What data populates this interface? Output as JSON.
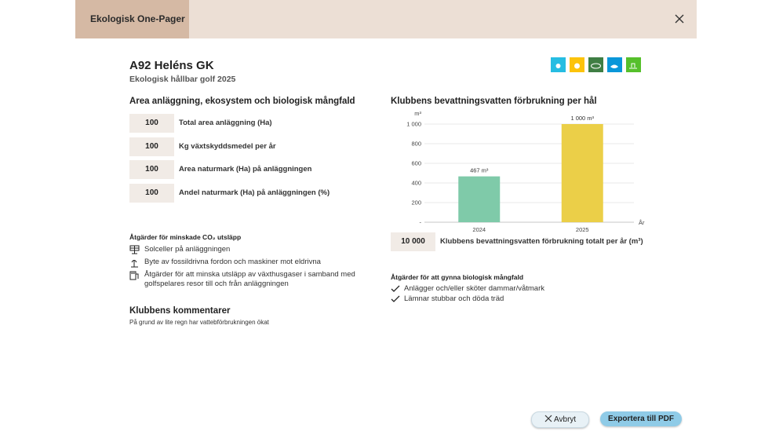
{
  "header": {
    "tab": "Ekologisk One-Pager"
  },
  "club": {
    "title": "A92 Heléns GK",
    "subtitle": "Ekologisk hållbar golf 2025"
  },
  "area": {
    "heading": "Area anläggning, ekosystem och biologisk mångfald",
    "rows": [
      {
        "value": "100",
        "label": "Total area anläggning (Ha)"
      },
      {
        "value": "100",
        "label": "Kg växtskyddsmedel per år"
      },
      {
        "value": "100",
        "label": "Area naturmark (Ha) på anläggningen"
      },
      {
        "value": "100",
        "label": "Andel naturmark (Ha) på anläggningen (%)"
      }
    ]
  },
  "co2": {
    "heading": "Åtgärder för minskade CO₂ utsläpp",
    "items": [
      "Solceller på anläggningen",
      "Byte av fossildrivna fordon och maskiner mot eldrivna",
      "Åtgärder för att minska utsläpp av växthusgaser i samband med golfspelares resor till och från anläggningen"
    ]
  },
  "comments": {
    "heading": "Klubbens kommentarer",
    "text": "På grund av lite regn har vattebförbrukningen ökat"
  },
  "chart_data": {
    "type": "bar",
    "title": "Klubbens bevattningsvatten förbrukning per hål",
    "y_unit": "m³",
    "x_label": "År",
    "categories": [
      "2024",
      "2025"
    ],
    "values": [
      467,
      1000
    ],
    "value_labels": [
      "467 m³",
      "1 000 m³"
    ],
    "colors": [
      "#7fcaa9",
      "#ebcf48"
    ],
    "ylim": [
      0,
      1000
    ],
    "yticks": [
      {
        "value": 0,
        "label": "-"
      },
      200,
      400,
      600,
      800,
      {
        "value": 1000,
        "label": "1 000"
      }
    ],
    "grid": true
  },
  "total": {
    "value": "10 000",
    "label": "Klubbens bevattningsvatten förbrukning totalt per år (m³)"
  },
  "biodiversity": {
    "heading": "Åtgärder för att gynna biologisk mångfald",
    "items": [
      "Anlägger och/eller sköter dammar/våtmark",
      "Lämnar stubbar och döda träd"
    ]
  },
  "buttons": {
    "cancel": "Avbryt",
    "export": "Exportera till PDF"
  }
}
